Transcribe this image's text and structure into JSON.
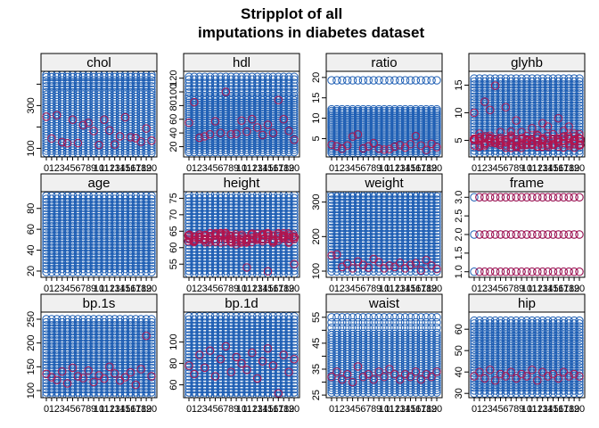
{
  "title": {
    "line1": "Stripplot of all",
    "line2": "imputations in diabetes dataset"
  },
  "colors": {
    "observed": "#1f5fb4",
    "imputed": "#b0154f",
    "strip_bg": "#f0f0f0",
    "frame": "#000000"
  },
  "chart_data": {
    "type": "scatter",
    "x": [
      0,
      1,
      2,
      3,
      4,
      5,
      6,
      7,
      8,
      9,
      10,
      11,
      12,
      13,
      14,
      15,
      16,
      17,
      18,
      19,
      20
    ],
    "x_tick_labels": [
      "0",
      "1",
      "2",
      "3",
      "4",
      "5",
      "6",
      "7",
      "8",
      "9",
      "10",
      "11",
      "12",
      "13",
      "14",
      "15",
      "16",
      "17",
      "18",
      "19",
      "20"
    ],
    "panels": [
      {
        "name": "chol",
        "ylim": [
          60,
          460
        ],
        "yticks": [
          100,
          300
        ],
        "ytick_labels": [
          "100",
          "300"
        ],
        "extra_ticks": [
          200,
          400
        ],
        "observed_range": [
          78,
          362
        ],
        "observed_extra": [
          375,
          390,
          405,
          418,
          433,
          443
        ],
        "imputed": [
          248,
          146,
          255,
          129,
          124,
          234,
          125,
          209,
          219,
          181,
          116,
          234,
          184,
          118,
          156,
          245,
          152,
          148,
          131,
          193,
          136
        ]
      },
      {
        "name": "hdl",
        "ylim": [
          5,
          130
        ],
        "yticks": [
          20,
          40,
          60,
          80,
          100,
          120
        ],
        "ytick_labels": [
          "20",
          "40",
          "60",
          "80",
          "100",
          "120"
        ],
        "extra_ticks": [],
        "observed_range": [
          12,
          94
        ],
        "observed_extra": [
          99,
          104,
          108,
          113,
          118,
          122
        ],
        "imputed": [
          55,
          85,
          33,
          35,
          38,
          57,
          40,
          100,
          38,
          39,
          58,
          42,
          60,
          48,
          37,
          52,
          40,
          88,
          60,
          43,
          30
        ]
      },
      {
        "name": "ratio",
        "ylim": [
          0.5,
          21.5
        ],
        "yticks": [
          5,
          10,
          15,
          20
        ],
        "ytick_labels": [
          "5",
          "10",
          "15",
          "20"
        ],
        "extra_ticks": [],
        "observed_range": [
          1.5,
          12.2
        ],
        "observed_extra": [
          19.3
        ],
        "imputed": [
          3.5,
          3.1,
          2.5,
          3.3,
          5.5,
          6,
          2.6,
          3.1,
          3.9,
          2.5,
          2.3,
          2.4,
          3,
          3.4,
          2.8,
          3.6,
          5.6,
          3.3,
          2.2,
          3.7,
          2.9
        ]
      },
      {
        "name": "glyhb",
        "ylim": [
          2,
          17.5
        ],
        "yticks": [
          5,
          10,
          15
        ],
        "ytick_labels": [
          "5",
          "10",
          "15"
        ],
        "extra_ticks": [],
        "observed_range": [
          2.6,
          16.2
        ],
        "observed_extra": [],
        "imputed_band": [
          3.6,
          5.9
        ],
        "imputed": [
          10,
          6.2,
          12,
          10.5,
          14.9,
          6.5,
          11,
          6.6,
          8.6,
          6.5,
          5.8,
          7.2,
          6,
          8.1,
          7.5,
          6.1,
          9,
          6.7,
          7.5,
          6.2,
          6.1
        ]
      },
      {
        "name": "age",
        "ylim": [
          14,
          96
        ],
        "yticks": [
          20,
          40,
          60,
          80
        ],
        "ytick_labels": [
          "20",
          "40",
          "60",
          "80"
        ],
        "extra_ticks": [],
        "observed_range": [
          19,
          92
        ],
        "observed_extra": [],
        "imputed": []
      },
      {
        "name": "height",
        "ylim": [
          51,
          77
        ],
        "yticks": [
          55,
          60,
          65,
          70,
          75
        ],
        "ytick_labels": [
          "55",
          "60",
          "65",
          "70",
          "75"
        ],
        "extra_ticks": [],
        "observed_range": [
          52,
          76
        ],
        "observed_extra": [],
        "imputed_band": [
          61.5,
          64.5
        ],
        "imputed": [
          63,
          62,
          64,
          62.5,
          63.5,
          61.8,
          64.3,
          63.5,
          62,
          61,
          62.5,
          54,
          63,
          64.2,
          64.1,
          52.8,
          61.5,
          62.9,
          63,
          61.8,
          55
        ]
      },
      {
        "name": "weight",
        "ylim": [
          82,
          330
        ],
        "yticks": [
          100,
          200,
          300
        ],
        "ytick_labels": [
          "100",
          "200",
          "300"
        ],
        "extra_ticks": [],
        "observed_range": [
          99,
          325
        ],
        "observed_extra": [],
        "imputed": [
          145,
          148,
          112,
          122,
          108,
          128,
          118,
          110,
          135,
          126,
          108,
          116,
          112,
          124,
          108,
          118,
          123,
          102,
          132,
          116,
          106
        ]
      },
      {
        "name": "frame",
        "ylim": [
          0.85,
          3.15
        ],
        "yticks": [
          1.0,
          1.5,
          2.0,
          2.5,
          3.0
        ],
        "ytick_labels": [
          "1.0",
          "1.5",
          "2.0",
          "2.5",
          "3.0"
        ],
        "extra_ticks": [],
        "observed_levels": [
          1,
          2,
          3
        ],
        "imputed_levels": [
          1,
          2,
          3
        ]
      },
      {
        "name": "bp.1s",
        "ylim": [
          85,
          265
        ],
        "yticks": [
          100,
          150,
          200,
          250
        ],
        "ytick_labels": [
          "100",
          "150",
          "200",
          "250"
        ],
        "extra_ticks": [],
        "observed_range": [
          90,
          250
        ],
        "observed_extra": [],
        "imputed": [
          135,
          128,
          122,
          140,
          115,
          148,
          130,
          126,
          142,
          118,
          132,
          125,
          150,
          136,
          121,
          128,
          138,
          112,
          145,
          215,
          130
        ]
      },
      {
        "name": "bp.1d",
        "ylim": [
          48,
          128
        ],
        "yticks": [
          60,
          80,
          100
        ],
        "ytick_labels": [
          "60",
          "80",
          "100"
        ],
        "extra_ticks": [],
        "observed_range": [
          50,
          124
        ],
        "observed_extra": [],
        "imputed": [
          78,
          70,
          88,
          76,
          92,
          68,
          84,
          96,
          72,
          86,
          80,
          74,
          90,
          66,
          82,
          94,
          78,
          52,
          88,
          72,
          84
        ]
      },
      {
        "name": "waist",
        "ylim": [
          24,
          57
        ],
        "yticks": [
          25,
          35,
          45,
          55
        ],
        "ytick_labels": [
          "25",
          "35",
          "45",
          "55"
        ],
        "extra_ticks": [
          30,
          40,
          50
        ],
        "observed_range": [
          26,
          49
        ],
        "observed_extra": [
          51,
          53,
          55
        ],
        "imputed": [
          32,
          34,
          31,
          33,
          30,
          36,
          32,
          33,
          31,
          34,
          32,
          35,
          33,
          31,
          33,
          32,
          34,
          31,
          33,
          32,
          34
        ]
      },
      {
        "name": "hip",
        "ylim": [
          28,
          68
        ],
        "yticks": [
          30,
          40,
          50,
          60
        ],
        "ytick_labels": [
          "30",
          "40",
          "50",
          "60"
        ],
        "extra_ticks": [],
        "observed_range": [
          30,
          64
        ],
        "observed_extra": [],
        "imputed": [
          38,
          40,
          37,
          41,
          36,
          39,
          38,
          40,
          37,
          39,
          38,
          41,
          36,
          40,
          38,
          39,
          37,
          40,
          38,
          39,
          38
        ]
      }
    ]
  }
}
